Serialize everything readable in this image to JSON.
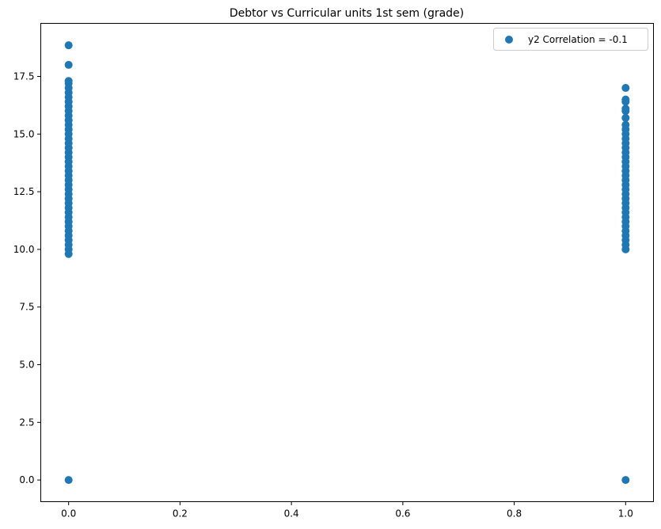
{
  "chart_data": {
    "type": "scatter",
    "title": "Debtor vs Curricular units 1st sem (grade)",
    "xlabel": "",
    "ylabel": "",
    "xlim": [
      -0.05,
      1.05
    ],
    "ylim": [
      -0.94,
      19.8
    ],
    "xticks": [
      0.0,
      0.2,
      0.4,
      0.6,
      0.8,
      1.0
    ],
    "xtick_labels": [
      "0.0",
      "0.2",
      "0.4",
      "0.6",
      "0.8",
      "1.0"
    ],
    "yticks": [
      0.0,
      2.5,
      5.0,
      7.5,
      10.0,
      12.5,
      15.0,
      17.5
    ],
    "ytick_labels": [
      "0.0",
      "2.5",
      "5.0",
      "7.5",
      "10.0",
      "12.5",
      "15.0",
      "17.5"
    ],
    "grid": false,
    "legend_position": "top-right",
    "marker_color": "#1f77b4",
    "series": [
      {
        "name": "y2 Correlation = -0.1",
        "points": [
          [
            0,
            0.0
          ],
          [
            0,
            9.8
          ],
          [
            0,
            10.0
          ],
          [
            0,
            10.2
          ],
          [
            0,
            10.4
          ],
          [
            0,
            10.6
          ],
          [
            0,
            10.8
          ],
          [
            0,
            11.0
          ],
          [
            0,
            11.2
          ],
          [
            0,
            11.4
          ],
          [
            0,
            11.6
          ],
          [
            0,
            11.8
          ],
          [
            0,
            12.0
          ],
          [
            0,
            12.2
          ],
          [
            0,
            12.4
          ],
          [
            0,
            12.6
          ],
          [
            0,
            12.8
          ],
          [
            0,
            13.0
          ],
          [
            0,
            13.2
          ],
          [
            0,
            13.4
          ],
          [
            0,
            13.6
          ],
          [
            0,
            13.8
          ],
          [
            0,
            14.0
          ],
          [
            0,
            14.2
          ],
          [
            0,
            14.4
          ],
          [
            0,
            14.6
          ],
          [
            0,
            14.8
          ],
          [
            0,
            15.0
          ],
          [
            0,
            15.2
          ],
          [
            0,
            15.4
          ],
          [
            0,
            15.6
          ],
          [
            0,
            15.8
          ],
          [
            0,
            16.0
          ],
          [
            0,
            16.2
          ],
          [
            0,
            16.4
          ],
          [
            0,
            16.6
          ],
          [
            0,
            16.8
          ],
          [
            0,
            17.0
          ],
          [
            0,
            17.2
          ],
          [
            0,
            17.3
          ],
          [
            0,
            18.0
          ],
          [
            0,
            18.85
          ],
          [
            1,
            0.0
          ],
          [
            1,
            10.0
          ],
          [
            1,
            10.2
          ],
          [
            1,
            10.4
          ],
          [
            1,
            10.6
          ],
          [
            1,
            10.8
          ],
          [
            1,
            11.0
          ],
          [
            1,
            11.2
          ],
          [
            1,
            11.4
          ],
          [
            1,
            11.6
          ],
          [
            1,
            11.8
          ],
          [
            1,
            12.0
          ],
          [
            1,
            12.2
          ],
          [
            1,
            12.4
          ],
          [
            1,
            12.6
          ],
          [
            1,
            12.8
          ],
          [
            1,
            13.0
          ],
          [
            1,
            13.2
          ],
          [
            1,
            13.4
          ],
          [
            1,
            13.6
          ],
          [
            1,
            13.8
          ],
          [
            1,
            14.0
          ],
          [
            1,
            14.2
          ],
          [
            1,
            14.4
          ],
          [
            1,
            14.6
          ],
          [
            1,
            14.8
          ],
          [
            1,
            15.0
          ],
          [
            1,
            15.2
          ],
          [
            1,
            15.4
          ],
          [
            1,
            15.7
          ],
          [
            1,
            16.0
          ],
          [
            1,
            16.1
          ],
          [
            1,
            16.4
          ],
          [
            1,
            16.5
          ],
          [
            1,
            17.0
          ]
        ]
      }
    ]
  }
}
